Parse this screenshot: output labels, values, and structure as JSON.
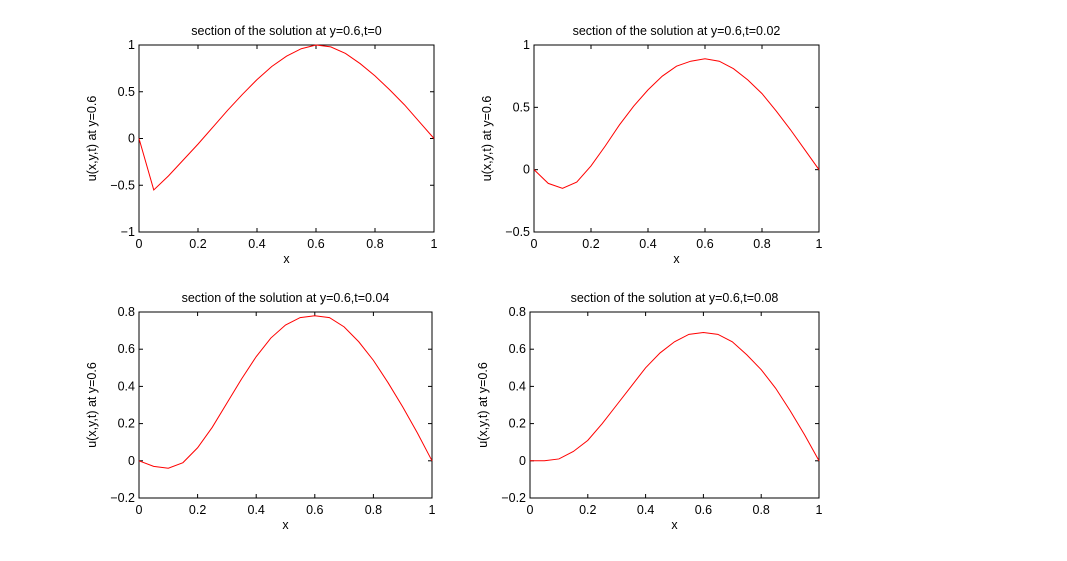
{
  "chart_data": [
    {
      "type": "line",
      "title": "section of the solution at y=0.6,t=0",
      "xlabel": "x",
      "ylabel": "u(x,y,t) at y=0.6",
      "xlim": [
        0,
        1
      ],
      "ylim": [
        -1,
        1
      ],
      "xticks": [
        0,
        0.2,
        0.4,
        0.6,
        0.8,
        1
      ],
      "xtick_labels": [
        "0",
        "0.2",
        "0.4",
        "0.6",
        "0.8",
        "1"
      ],
      "yticks": [
        -1,
        -0.5,
        0,
        0.5,
        1
      ],
      "ytick_labels": [
        "−1",
        "−0.5",
        "0",
        "0.5",
        "1"
      ],
      "grid": false,
      "color": "#ff0000",
      "series": [
        {
          "x": [
            0,
            0.05,
            0.1,
            0.15,
            0.2,
            0.25,
            0.3,
            0.35,
            0.4,
            0.45,
            0.5,
            0.55,
            0.6,
            0.65,
            0.7,
            0.75,
            0.8,
            0.85,
            0.9,
            0.95,
            1
          ],
          "y": [
            0,
            -0.55,
            -0.4,
            -0.23,
            -0.06,
            0.12,
            0.3,
            0.47,
            0.63,
            0.77,
            0.88,
            0.96,
            1.0,
            0.98,
            0.91,
            0.8,
            0.67,
            0.52,
            0.36,
            0.18,
            0
          ]
        }
      ]
    },
    {
      "type": "line",
      "title": "section of the solution at y=0.6,t=0.02",
      "xlabel": "x",
      "ylabel": "u(x,y,t) at y=0.6",
      "xlim": [
        0,
        1
      ],
      "ylim": [
        -0.5,
        1
      ],
      "xticks": [
        0,
        0.2,
        0.4,
        0.6,
        0.8,
        1
      ],
      "xtick_labels": [
        "0",
        "0.2",
        "0.4",
        "0.6",
        "0.8",
        "1"
      ],
      "yticks": [
        -0.5,
        0,
        0.5,
        1
      ],
      "ytick_labels": [
        "−0.5",
        "0",
        "0.5",
        "1"
      ],
      "grid": false,
      "color": "#ff0000",
      "series": [
        {
          "x": [
            0,
            0.05,
            0.1,
            0.15,
            0.2,
            0.25,
            0.3,
            0.35,
            0.4,
            0.45,
            0.5,
            0.55,
            0.6,
            0.65,
            0.7,
            0.75,
            0.8,
            0.85,
            0.9,
            0.95,
            1
          ],
          "y": [
            0,
            -0.11,
            -0.15,
            -0.1,
            0.03,
            0.19,
            0.36,
            0.51,
            0.64,
            0.75,
            0.83,
            0.87,
            0.89,
            0.87,
            0.81,
            0.72,
            0.61,
            0.47,
            0.32,
            0.16,
            0
          ]
        }
      ]
    },
    {
      "type": "line",
      "title": "section of the solution at y=0.6,t=0.04",
      "xlabel": "x",
      "ylabel": "u(x,y,t) at y=0.6",
      "xlim": [
        0,
        1
      ],
      "ylim": [
        -0.2,
        0.8
      ],
      "xticks": [
        0,
        0.2,
        0.4,
        0.6,
        0.8,
        1
      ],
      "xtick_labels": [
        "0",
        "0.2",
        "0.4",
        "0.6",
        "0.8",
        "1"
      ],
      "yticks": [
        -0.2,
        0,
        0.2,
        0.4,
        0.6,
        0.8
      ],
      "ytick_labels": [
        "−0.2",
        "0",
        "0.2",
        "0.4",
        "0.6",
        "0.8"
      ],
      "grid": false,
      "color": "#ff0000",
      "series": [
        {
          "x": [
            0,
            0.05,
            0.1,
            0.15,
            0.2,
            0.25,
            0.3,
            0.35,
            0.4,
            0.45,
            0.5,
            0.55,
            0.6,
            0.65,
            0.7,
            0.75,
            0.8,
            0.85,
            0.9,
            0.95,
            1
          ],
          "y": [
            0,
            -0.03,
            -0.04,
            -0.01,
            0.07,
            0.18,
            0.31,
            0.44,
            0.56,
            0.66,
            0.73,
            0.77,
            0.78,
            0.77,
            0.72,
            0.64,
            0.54,
            0.42,
            0.29,
            0.15,
            0
          ]
        }
      ]
    },
    {
      "type": "line",
      "title": "section of the solution at y=0.6,t=0.08",
      "xlabel": "x",
      "ylabel": "u(x,y,t) at y=0.6",
      "xlim": [
        0,
        1
      ],
      "ylim": [
        -0.2,
        0.8
      ],
      "xticks": [
        0,
        0.2,
        0.4,
        0.6,
        0.8,
        1
      ],
      "xtick_labels": [
        "0",
        "0.2",
        "0.4",
        "0.6",
        "0.8",
        "1"
      ],
      "yticks": [
        -0.2,
        0,
        0.2,
        0.4,
        0.6,
        0.8
      ],
      "ytick_labels": [
        "−0.2",
        "0",
        "0.2",
        "0.4",
        "0.6",
        "0.8"
      ],
      "grid": false,
      "color": "#ff0000",
      "series": [
        {
          "x": [
            0,
            0.05,
            0.1,
            0.15,
            0.2,
            0.25,
            0.3,
            0.35,
            0.4,
            0.45,
            0.5,
            0.55,
            0.6,
            0.65,
            0.7,
            0.75,
            0.8,
            0.85,
            0.9,
            0.95,
            1
          ],
          "y": [
            0,
            0,
            0.01,
            0.05,
            0.11,
            0.2,
            0.3,
            0.4,
            0.5,
            0.58,
            0.64,
            0.68,
            0.69,
            0.68,
            0.64,
            0.57,
            0.49,
            0.39,
            0.27,
            0.14,
            0
          ]
        }
      ]
    }
  ]
}
